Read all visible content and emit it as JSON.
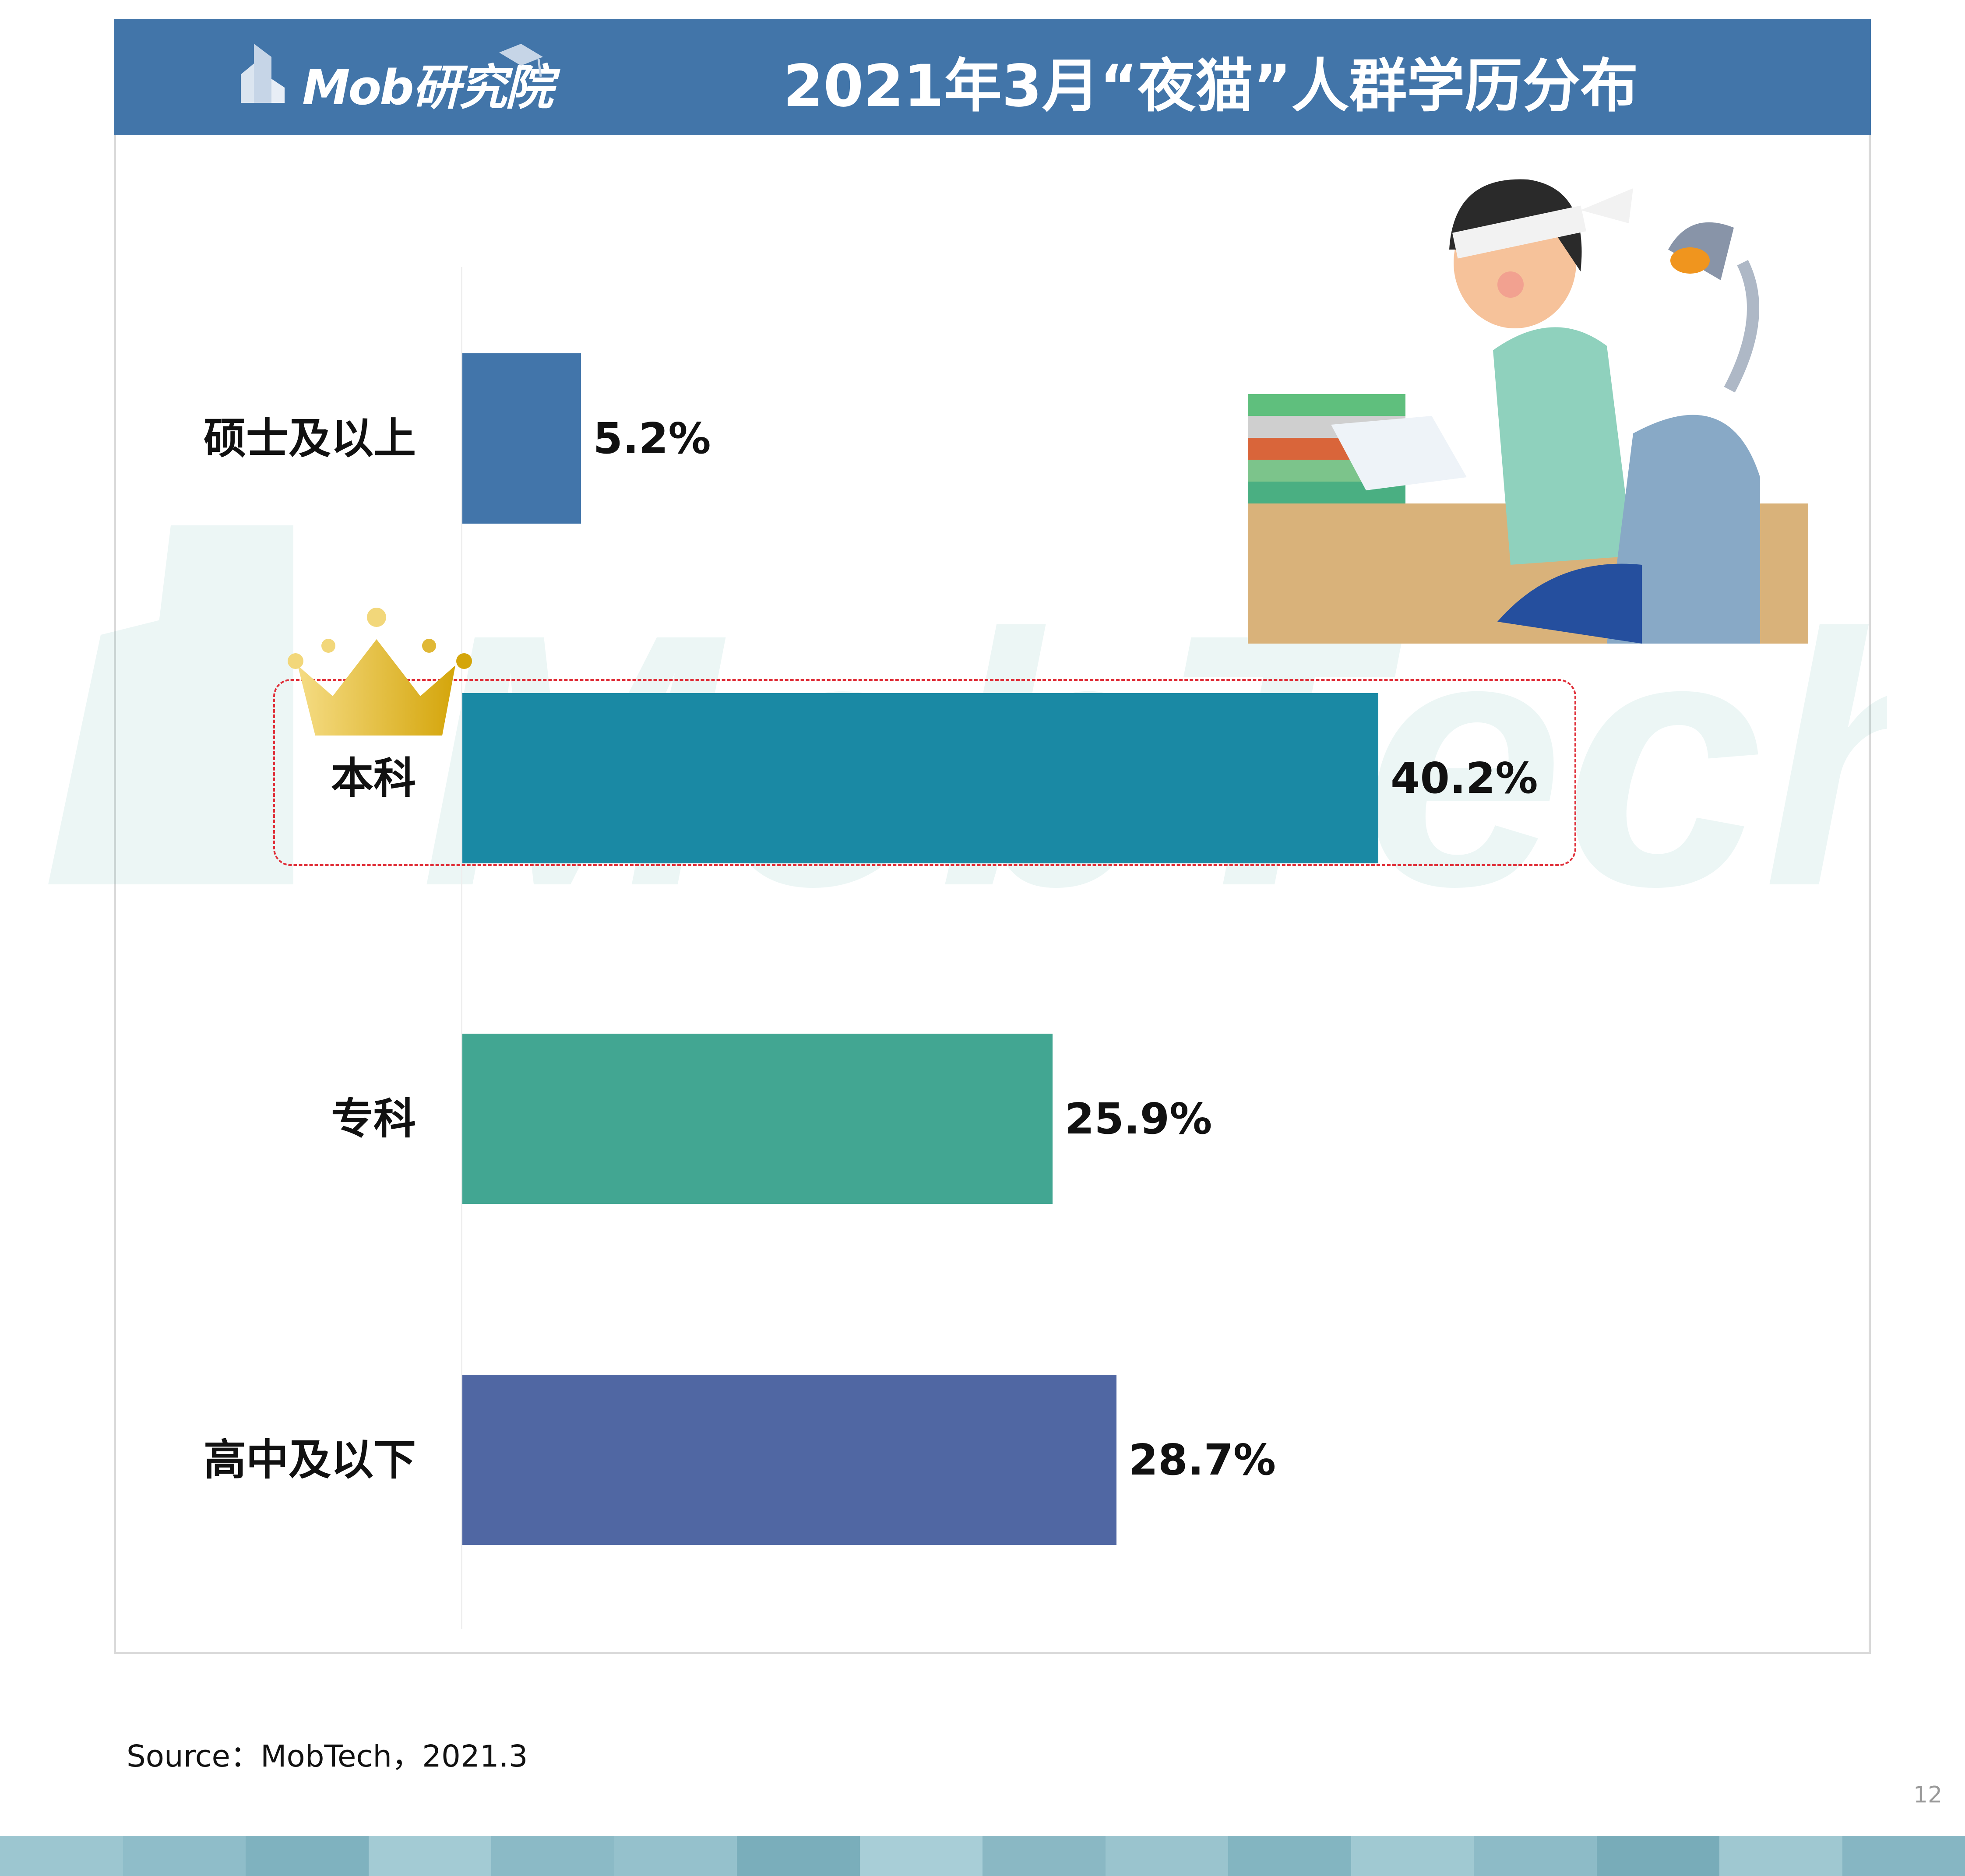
{
  "header": {
    "logo_text": "Mob研究院",
    "title": "2021年3月“夜猫”人群学历分布"
  },
  "watermark": "MobTech袤博",
  "chart_data": {
    "type": "bar",
    "orientation": "horizontal",
    "title": "2021年3月“夜猫”人群学历分布",
    "categories": [
      "硕士及以上",
      "本科",
      "专科",
      "高中及以下"
    ],
    "values": [
      5.2,
      40.2,
      25.9,
      28.7
    ],
    "value_labels": [
      "5.2%",
      "40.2%",
      "25.9%",
      "28.7%"
    ],
    "colors": [
      "#4275aa",
      "#1a89a4",
      "#42a692",
      "#5067a3"
    ],
    "highlight": "本科",
    "unit": "%",
    "grid": false,
    "legend": "none"
  },
  "footer": {
    "source": "Source：MobTech，2021.3",
    "page_number": "12"
  },
  "colors": {
    "header": "#4275a9",
    "highlight_border": "#e0303a",
    "stripe": "#8fbdc9"
  }
}
